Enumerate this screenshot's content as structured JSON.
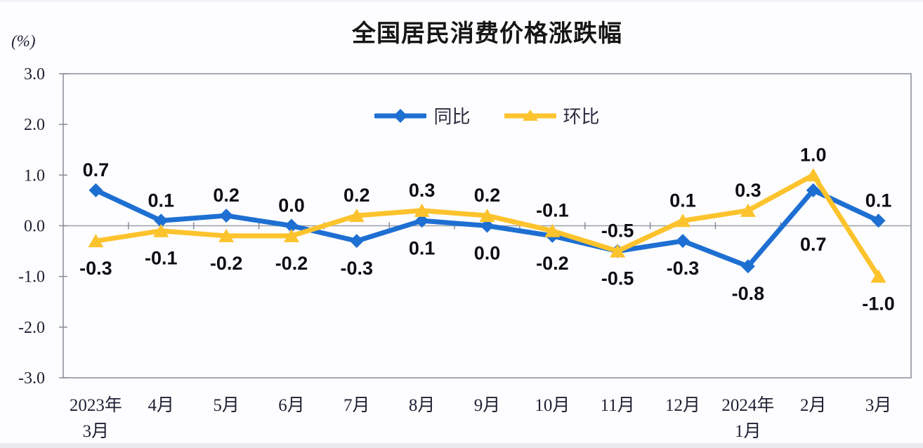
{
  "page": {
    "background": "#fdfdff"
  },
  "chart_data": {
    "type": "line",
    "title": "全国居民消费价格涨跌幅",
    "unit_label": "(%)",
    "categories": [
      "2023年3月",
      "4月",
      "5月",
      "6月",
      "7月",
      "8月",
      "9月",
      "10月",
      "11月",
      "12月",
      "2024年1月",
      "2月",
      "3月"
    ],
    "series": [
      {
        "name": "同比",
        "color": "#1e6fd2",
        "marker": "diamond",
        "values": [
          0.7,
          0.1,
          0.2,
          0.0,
          -0.3,
          0.1,
          0.0,
          -0.2,
          -0.5,
          -0.3,
          -0.8,
          0.7,
          0.1
        ]
      },
      {
        "name": "环比",
        "color": "#fdc32d",
        "marker": "triangle",
        "values": [
          -0.3,
          -0.1,
          -0.2,
          -0.2,
          0.2,
          0.3,
          0.2,
          -0.1,
          -0.5,
          0.1,
          0.3,
          1.0,
          -1.0
        ]
      }
    ],
    "y_axis": {
      "min": -3.0,
      "max": 3.0,
      "step": 1.0,
      "tick_labels": [
        "3.0",
        "2.0",
        "1.0",
        "0.0",
        "-1.0",
        "-2.0",
        "-3.0"
      ]
    },
    "legend_position": "top-center",
    "grid": false,
    "data_labels": true,
    "colors": {
      "axis_line": "#878c99",
      "zero_line": "#9aa0a8",
      "tick_text": "#1d2032",
      "label_text": "#0e0e12"
    }
  }
}
